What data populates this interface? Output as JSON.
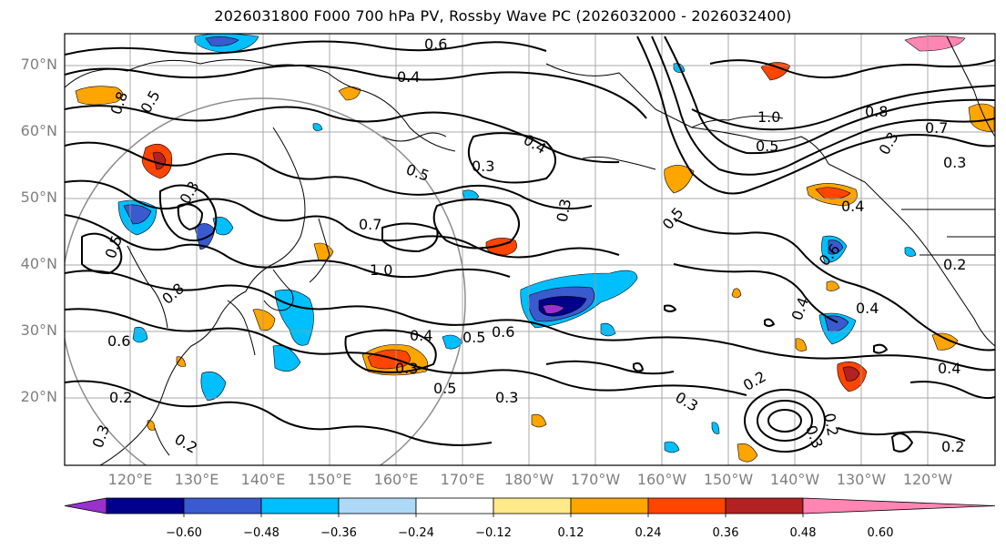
{
  "title": "2026031800 F000 700 hPa PV, Rossby Wave PC (2026032000 - 2026032400)",
  "lat_labels": [
    "70°N",
    "60°N",
    "50°N",
    "40°N",
    "30°N",
    "20°N"
  ],
  "lon_labels": [
    "120°E",
    "130°E",
    "140°E",
    "150°E",
    "160°E",
    "170°E",
    "180°W",
    "170°W",
    "160°W",
    "150°W",
    "140°W",
    "130°W",
    "120°W"
  ],
  "contour_labels": [
    "0.6",
    "0.4",
    "0.8",
    "0.5",
    "0.3",
    "0.4",
    "0.3",
    "0.5",
    "0.7",
    "1.0",
    "0.3",
    "0.5",
    "0.8",
    "0.5",
    "0.6",
    "0.4",
    "0.3",
    "0.5",
    "0.6",
    "0.3",
    "0.2",
    "0.3",
    "0.2",
    "1.0",
    "0.5",
    "0.8",
    "0.3",
    "0.4",
    "0.6",
    "0.7",
    "0.3",
    "0.4",
    "0.2",
    "0.4",
    "0.2",
    "0.2",
    "0.4",
    "0.5",
    "0.3",
    "0.2",
    "0.3"
  ],
  "colorbar": {
    "ticks": [
      "−0.60",
      "−0.48",
      "−0.36",
      "−0.24",
      "−0.12",
      "0.12",
      "0.24",
      "0.36",
      "0.48",
      "0.60"
    ],
    "colors": [
      "#9932cc",
      "#00008b",
      "#3a5bcf",
      "#00bfff",
      "#add8f6",
      "#ffffff",
      "#ffe98a",
      "#ffa500",
      "#ff4500",
      "#b22222",
      "#ff85b3"
    ]
  },
  "legend_colors": {
    "contour": "#000000",
    "grid": "#9a9a9a",
    "coast": "#000000",
    "circle": "#8c8c8c"
  }
}
